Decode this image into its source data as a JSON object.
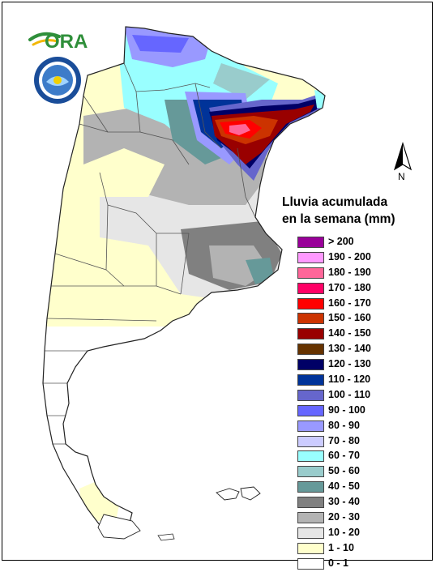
{
  "logo": {
    "text": "ORA"
  },
  "north_arrow": {
    "label": "N"
  },
  "legend": {
    "title_line1": "Lluvia acumulada",
    "title_line2": "en la semana (mm)",
    "classes": [
      {
        "label": "> 200",
        "color": "#990099"
      },
      {
        "label": "190 - 200",
        "color": "#ff99ff"
      },
      {
        "label": "180 - 190",
        "color": "#ff6699"
      },
      {
        "label": "170 - 180",
        "color": "#ff0066"
      },
      {
        "label": "160 - 170",
        "color": "#ff0000"
      },
      {
        "label": "150 - 160",
        "color": "#cc3300"
      },
      {
        "label": "140 - 150",
        "color": "#990000"
      },
      {
        "label": "130 - 140",
        "color": "#663300"
      },
      {
        "label": "120 - 130",
        "color": "#000066"
      },
      {
        "label": "110 - 120",
        "color": "#003399"
      },
      {
        "label": "100 - 110",
        "color": "#6666cc"
      },
      {
        "label": "90 - 100",
        "color": "#6666ff"
      },
      {
        "label": "80 - 90",
        "color": "#9999ff"
      },
      {
        "label": "70 - 80",
        "color": "#ccccff"
      },
      {
        "label": "60 - 70",
        "color": "#99ffff"
      },
      {
        "label": "50 - 60",
        "color": "#99cccc"
      },
      {
        "label": "40 - 50",
        "color": "#669999"
      },
      {
        "label": "30 - 40",
        "color": "#808080"
      },
      {
        "label": "20 - 30",
        "color": "#b3b3b3"
      },
      {
        "label": "10 - 20",
        "color": "#e6e6e6"
      },
      {
        "label": "1 - 10",
        "color": "#ffffcc"
      },
      {
        "label": "0 - 1",
        "color": "#ffffff"
      }
    ]
  }
}
